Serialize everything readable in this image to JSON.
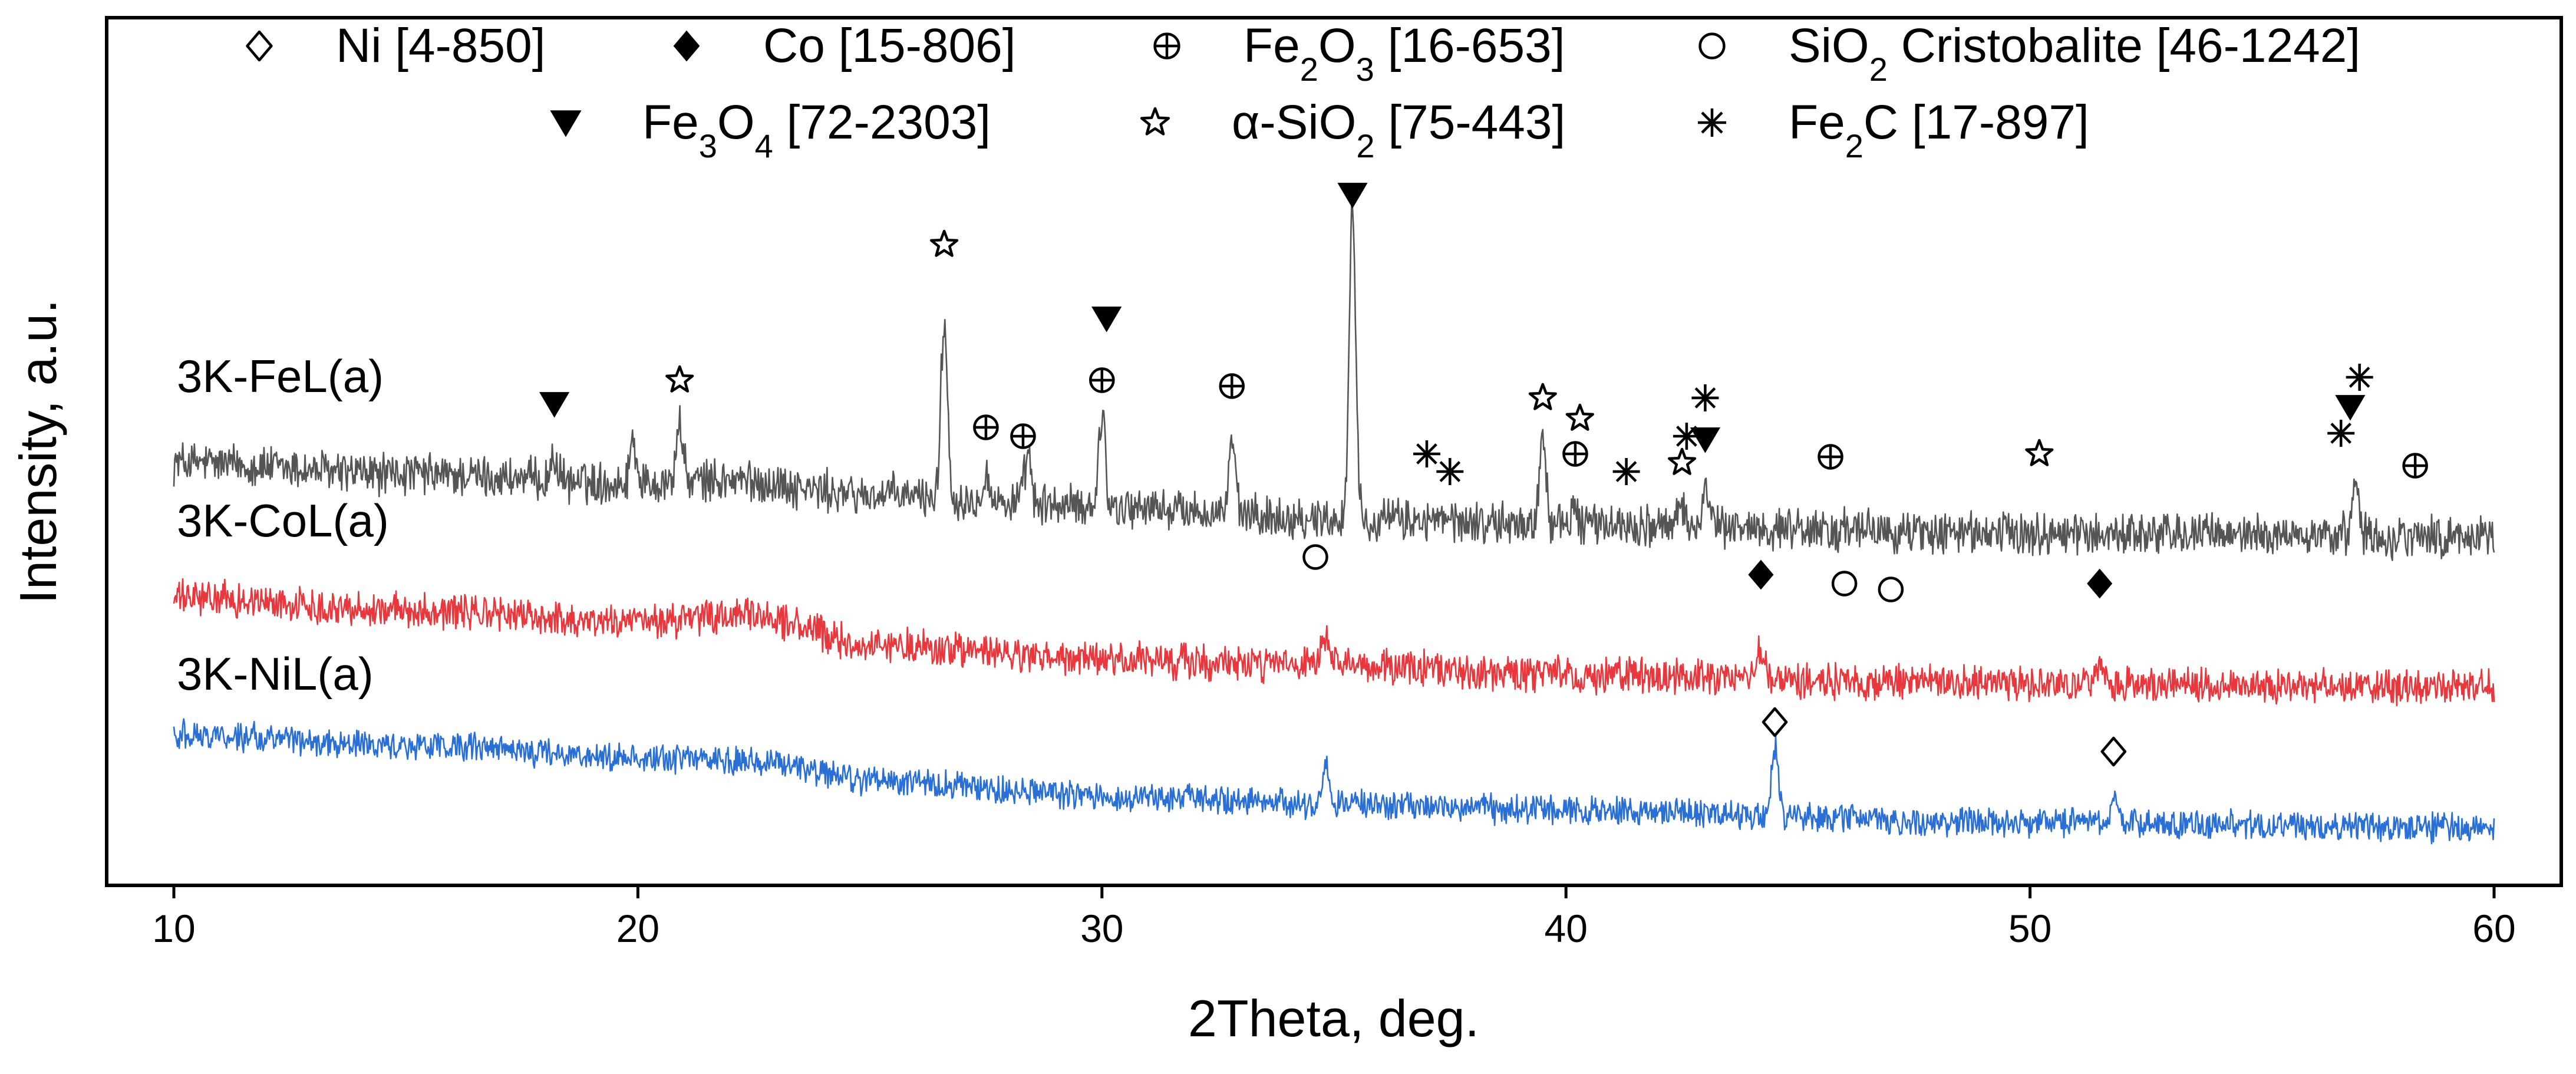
{
  "chart_data": {
    "type": "line",
    "title": "",
    "xlabel": "2Theta, deg.",
    "ylabel": "Intensity, a.u.",
    "xlim": [
      8.5,
      60.6
    ],
    "x_ticks": [
      10,
      20,
      30,
      40,
      50,
      60
    ],
    "y_ticks": [],
    "grid": false,
    "legend": {
      "position": "top",
      "entries": [
        {
          "name": "Ni",
          "card": "[4-850]",
          "marker": "diamond-open"
        },
        {
          "name": "Co",
          "card": "[15-806]",
          "marker": "diamond-filled"
        },
        {
          "name": "Fe2O3",
          "card": "[16-653]",
          "marker": "circle-cross"
        },
        {
          "name": "SiO2 Cristobalite",
          "card": "[46-1242]",
          "marker": "circle-open"
        },
        {
          "name": "Fe3O4",
          "card": "[72-2303]",
          "marker": "triangle-down-filled"
        },
        {
          "name": "α-SiO2",
          "card": "[75-443]",
          "marker": "star-open"
        },
        {
          "name": "Fe2C",
          "card": "[17-897]",
          "marker": "asterisk"
        }
      ]
    },
    "series": [
      {
        "name": "3K-FeL(a)",
        "color": "#555555",
        "baseline": [
          [
            10,
            6.8
          ],
          [
            15,
            6.6
          ],
          [
            20,
            6.45
          ],
          [
            22,
            6.5
          ],
          [
            25,
            6.25
          ],
          [
            30,
            6.05
          ],
          [
            35,
            5.85
          ],
          [
            40,
            5.75
          ],
          [
            50,
            5.6
          ],
          [
            60,
            5.55
          ]
        ],
        "noise": 0.6,
        "peaks": [
          {
            "x": 18.2,
            "h": 0.4
          },
          {
            "x": 19.9,
            "h": 0.75
          },
          {
            "x": 20.9,
            "h": 1.0
          },
          {
            "x": 26.6,
            "h": 3.0
          },
          {
            "x": 27.5,
            "h": 0.5
          },
          {
            "x": 28.4,
            "h": 0.8
          },
          {
            "x": 30.0,
            "h": 1.6
          },
          {
            "x": 32.8,
            "h": 1.2
          },
          {
            "x": 35.4,
            "h": 5.3
          },
          {
            "x": 39.5,
            "h": 1.5
          },
          {
            "x": 40.2,
            "h": 0.3
          },
          {
            "x": 42.5,
            "h": 0.3
          },
          {
            "x": 43.0,
            "h": 0.7
          },
          {
            "x": 57.0,
            "h": 1.1
          }
        ]
      },
      {
        "name": "3K-CoL(a)",
        "color": "#e8383d",
        "baseline": [
          [
            10,
            4.5
          ],
          [
            15,
            4.3
          ],
          [
            20,
            4.1
          ],
          [
            22.5,
            4.2
          ],
          [
            25,
            3.7
          ],
          [
            30,
            3.45
          ],
          [
            35,
            3.35
          ],
          [
            40,
            3.2
          ],
          [
            50,
            3.05
          ],
          [
            60,
            3.0
          ]
        ],
        "noise": 0.5,
        "peaks": [
          {
            "x": 34.8,
            "h": 0.5
          },
          {
            "x": 44.2,
            "h": 0.5
          },
          {
            "x": 51.5,
            "h": 0.3
          }
        ]
      },
      {
        "name": "3K-NiL(a)",
        "color": "#2a6fd6",
        "baseline": [
          [
            10,
            2.2
          ],
          [
            15,
            2.0
          ],
          [
            20,
            1.8
          ],
          [
            22.5,
            1.75
          ],
          [
            25,
            1.4
          ],
          [
            30,
            1.15
          ],
          [
            35,
            1.0
          ],
          [
            40,
            0.9
          ],
          [
            50,
            0.7
          ],
          [
            60,
            0.6
          ]
        ],
        "noise": 0.4,
        "peaks": [
          {
            "x": 34.8,
            "h": 0.7
          },
          {
            "x": 44.5,
            "h": 1.2
          },
          {
            "x": 51.8,
            "h": 0.4
          }
        ]
      }
    ],
    "annotations": [
      {
        "series": "3K-FeL(a)",
        "marker": "triangle-down-filled",
        "x": 18.2,
        "y": 7.8
      },
      {
        "series": "3K-FeL(a)",
        "marker": "star-open",
        "x": 20.9,
        "y": 8.2
      },
      {
        "series": "3K-FeL(a)",
        "marker": "star-open",
        "x": 26.6,
        "y": 10.5
      },
      {
        "series": "3K-FeL(a)",
        "marker": "circle-cross",
        "x": 27.5,
        "y": 7.4
      },
      {
        "series": "3K-FeL(a)",
        "marker": "circle-cross",
        "x": 28.3,
        "y": 7.25
      },
      {
        "series": "3K-FeL(a)",
        "marker": "triangle-down-filled",
        "x": 30.1,
        "y": 9.25
      },
      {
        "series": "3K-FeL(a)",
        "marker": "circle-cross",
        "x": 30.0,
        "y": 8.2
      },
      {
        "series": "3K-FeL(a)",
        "marker": "circle-cross",
        "x": 32.8,
        "y": 8.1
      },
      {
        "series": "3K-FeL(a)",
        "marker": "triangle-down-filled",
        "x": 35.4,
        "y": 11.35
      },
      {
        "series": "3K-FeL(a)",
        "marker": "asterisk",
        "x": 37.0,
        "y": 6.95
      },
      {
        "series": "3K-FeL(a)",
        "marker": "asterisk",
        "x": 37.5,
        "y": 6.65
      },
      {
        "series": "3K-FeL(a)",
        "marker": "star-open",
        "x": 39.5,
        "y": 7.9
      },
      {
        "series": "3K-FeL(a)",
        "marker": "star-open",
        "x": 40.3,
        "y": 7.55
      },
      {
        "series": "3K-FeL(a)",
        "marker": "circle-cross",
        "x": 40.2,
        "y": 6.95
      },
      {
        "series": "3K-FeL(a)",
        "marker": "asterisk",
        "x": 41.3,
        "y": 6.65
      },
      {
        "series": "3K-FeL(a)",
        "marker": "star-open",
        "x": 42.5,
        "y": 6.8
      },
      {
        "series": "3K-FeL(a)",
        "marker": "asterisk",
        "x": 42.6,
        "y": 7.25
      },
      {
        "series": "3K-FeL(a)",
        "marker": "asterisk",
        "x": 43.0,
        "y": 7.9
      },
      {
        "series": "3K-FeL(a)",
        "marker": "triangle-down-filled",
        "x": 43.0,
        "y": 7.2
      },
      {
        "series": "3K-FeL(a)",
        "marker": "circle-cross",
        "x": 45.7,
        "y": 6.9
      },
      {
        "series": "3K-FeL(a)",
        "marker": "star-open",
        "x": 50.2,
        "y": 6.95
      },
      {
        "series": "3K-FeL(a)",
        "marker": "circle-cross",
        "x": 58.3,
        "y": 6.75
      },
      {
        "series": "3K-FeL(a)",
        "marker": "asterisk",
        "x": 56.7,
        "y": 7.3
      },
      {
        "series": "3K-FeL(a)",
        "marker": "asterisk",
        "x": 57.1,
        "y": 8.25
      },
      {
        "series": "3K-FeL(a)",
        "marker": "triangle-down-filled",
        "x": 56.9,
        "y": 7.75
      },
      {
        "series": "3K-CoL(a)",
        "marker": "circle-open",
        "x": 34.6,
        "y": 5.2
      },
      {
        "series": "3K-CoL(a)",
        "marker": "diamond-filled",
        "x": 44.2,
        "y": 4.9
      },
      {
        "series": "3K-CoL(a)",
        "marker": "circle-open",
        "x": 46.0,
        "y": 4.75
      },
      {
        "series": "3K-CoL(a)",
        "marker": "circle-open",
        "x": 47.0,
        "y": 4.65
      },
      {
        "series": "3K-CoL(a)",
        "marker": "diamond-filled",
        "x": 51.5,
        "y": 4.75
      },
      {
        "series": "3K-NiL(a)",
        "marker": "diamond-open",
        "x": 44.5,
        "y": 2.4
      },
      {
        "series": "3K-NiL(a)",
        "marker": "diamond-open",
        "x": 51.8,
        "y": 1.9
      }
    ],
    "series_labels": [
      {
        "text": "3K-FeL(a)",
        "x": 10,
        "y": 8.0
      },
      {
        "text": "3K-CoL(a)",
        "x": 10,
        "y": 5.55
      },
      {
        "text": "3K-NiL(a)",
        "x": 10,
        "y": 2.95
      }
    ]
  }
}
